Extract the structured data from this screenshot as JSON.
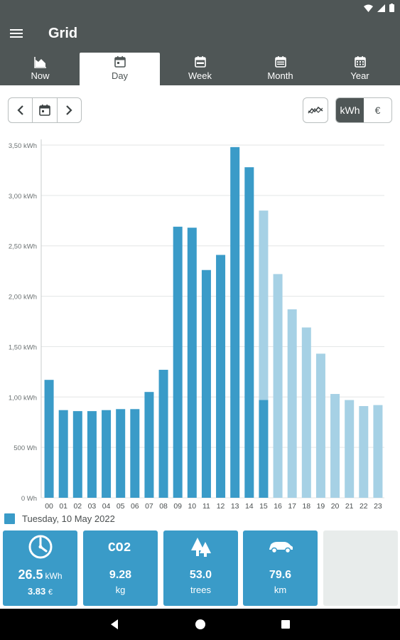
{
  "app": {
    "title": "Grid"
  },
  "tabs": [
    {
      "label": "Now",
      "icon": "area-chart-icon"
    },
    {
      "label": "Day",
      "icon": "calendar-day-icon"
    },
    {
      "label": "Week",
      "icon": "calendar-week-icon"
    },
    {
      "label": "Month",
      "icon": "calendar-month-icon"
    },
    {
      "label": "Year",
      "icon": "calendar-year-icon"
    }
  ],
  "active_tab": "Day",
  "toolbar": {
    "units": [
      "kWh",
      "€"
    ],
    "selected_unit": "kWh"
  },
  "colors": {
    "bar_measured": "#3a9bc8",
    "bar_forecast": "#a6d1e5",
    "header": "#4f5656"
  },
  "legend": {
    "label": "Tuesday, 10 May 2022"
  },
  "summary": {
    "energy": {
      "value": "26.5",
      "unit": "kWh",
      "cost": "3.83",
      "cost_unit": "€"
    },
    "co2": {
      "value": "9.28",
      "unit": "kg",
      "icon_text": "CO2"
    },
    "trees": {
      "value": "53.0",
      "unit": "trees"
    },
    "distance": {
      "value": "79.6",
      "unit": "km"
    }
  },
  "chart_data": {
    "type": "bar",
    "categories": [
      "00",
      "01",
      "02",
      "03",
      "04",
      "05",
      "06",
      "07",
      "08",
      "09",
      "10",
      "11",
      "12",
      "13",
      "14",
      "15",
      "16",
      "17",
      "18",
      "19",
      "20",
      "21",
      "22",
      "23"
    ],
    "series": [
      {
        "values": [
          1.17,
          0.87,
          0.86,
          0.86,
          0.87,
          0.88,
          0.88,
          1.05,
          1.27,
          2.69,
          2.68,
          2.26,
          2.41,
          3.48,
          3.28,
          0.97,
          null,
          null,
          null,
          null,
          null,
          null,
          null,
          null
        ]
      },
      {
        "values": [
          null,
          null,
          null,
          null,
          null,
          null,
          null,
          null,
          null,
          null,
          null,
          null,
          null,
          null,
          null,
          2.85,
          2.22,
          1.87,
          1.69,
          1.43,
          1.03,
          0.97,
          0.91,
          0.92
        ]
      }
    ],
    "y_ticks": [
      {
        "value": 0,
        "label": "0 Wh"
      },
      {
        "value": 0.5,
        "label": "500 Wh"
      },
      {
        "value": 1.0,
        "label": "1,00 kWh"
      },
      {
        "value": 1.5,
        "label": "1,50 kWh"
      },
      {
        "value": 2.0,
        "label": "2,00 kWh"
      },
      {
        "value": 2.5,
        "label": "2,50 kWh"
      },
      {
        "value": 3.0,
        "label": "3,00 kWh"
      },
      {
        "value": 3.5,
        "label": "3,50 kWh"
      }
    ],
    "ylim": [
      0,
      3.5
    ],
    "grid": true
  }
}
